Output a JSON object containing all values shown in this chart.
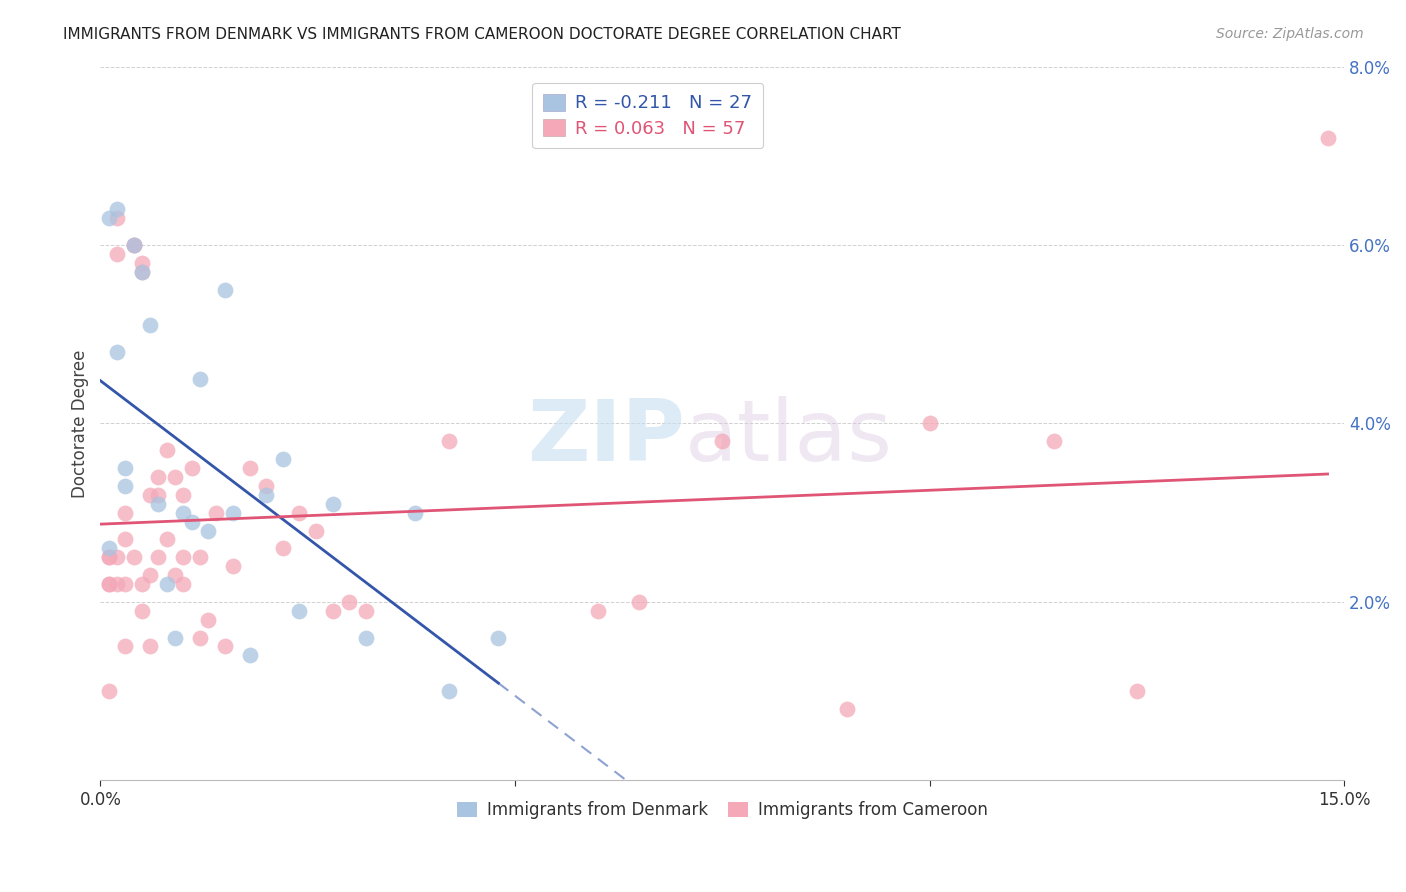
{
  "title": "IMMIGRANTS FROM DENMARK VS IMMIGRANTS FROM CAMEROON DOCTORATE DEGREE CORRELATION CHART",
  "source": "Source: ZipAtlas.com",
  "ylabel": "Doctorate Degree",
  "xlim": [
    0.0,
    0.15
  ],
  "ylim": [
    0.0,
    0.08
  ],
  "xticks": [
    0.0,
    0.05,
    0.1,
    0.15
  ],
  "xticklabels": [
    "0.0%",
    "",
    "",
    "15.0%"
  ],
  "yticks": [
    0.0,
    0.02,
    0.04,
    0.06,
    0.08
  ],
  "yticklabels": [
    "",
    "2.0%",
    "4.0%",
    "6.0%",
    "8.0%"
  ],
  "denmark_R": -0.211,
  "denmark_N": 27,
  "cameroon_R": 0.063,
  "cameroon_N": 57,
  "denmark_color": "#a8c4e0",
  "cameroon_color": "#f4a8b8",
  "denmark_line_color": "#3355aa",
  "cameroon_line_color": "#e05575",
  "denmark_x": [
    0.001,
    0.001,
    0.002,
    0.002,
    0.003,
    0.003,
    0.004,
    0.005,
    0.006,
    0.007,
    0.008,
    0.009,
    0.01,
    0.011,
    0.012,
    0.013,
    0.015,
    0.016,
    0.018,
    0.02,
    0.022,
    0.024,
    0.028,
    0.032,
    0.038,
    0.042,
    0.048
  ],
  "denmark_y": [
    0.026,
    0.063,
    0.064,
    0.048,
    0.033,
    0.035,
    0.06,
    0.057,
    0.051,
    0.031,
    0.022,
    0.016,
    0.03,
    0.029,
    0.045,
    0.028,
    0.055,
    0.03,
    0.014,
    0.032,
    0.036,
    0.019,
    0.031,
    0.016,
    0.03,
    0.01,
    0.016
  ],
  "cameroon_x": [
    0.001,
    0.001,
    0.001,
    0.001,
    0.001,
    0.002,
    0.002,
    0.002,
    0.002,
    0.003,
    0.003,
    0.003,
    0.003,
    0.004,
    0.004,
    0.004,
    0.005,
    0.005,
    0.005,
    0.005,
    0.006,
    0.006,
    0.006,
    0.007,
    0.007,
    0.007,
    0.008,
    0.008,
    0.009,
    0.009,
    0.01,
    0.01,
    0.01,
    0.011,
    0.012,
    0.012,
    0.013,
    0.014,
    0.015,
    0.016,
    0.018,
    0.02,
    0.022,
    0.024,
    0.026,
    0.028,
    0.03,
    0.032,
    0.042,
    0.06,
    0.065,
    0.075,
    0.09,
    0.1,
    0.115,
    0.125,
    0.148
  ],
  "cameroon_y": [
    0.022,
    0.025,
    0.025,
    0.022,
    0.01,
    0.025,
    0.063,
    0.059,
    0.022,
    0.027,
    0.03,
    0.022,
    0.015,
    0.06,
    0.06,
    0.025,
    0.058,
    0.057,
    0.022,
    0.019,
    0.023,
    0.032,
    0.015,
    0.025,
    0.032,
    0.034,
    0.027,
    0.037,
    0.023,
    0.034,
    0.025,
    0.022,
    0.032,
    0.035,
    0.025,
    0.016,
    0.018,
    0.03,
    0.015,
    0.024,
    0.035,
    0.033,
    0.026,
    0.03,
    0.028,
    0.019,
    0.02,
    0.019,
    0.038,
    0.019,
    0.02,
    0.038,
    0.008,
    0.04,
    0.038,
    0.01,
    0.072
  ],
  "watermark_zip": "ZIP",
  "watermark_atlas": "atlas",
  "background_color": "#ffffff",
  "grid_color": "#cccccc",
  "tick_color": "#4472c4"
}
